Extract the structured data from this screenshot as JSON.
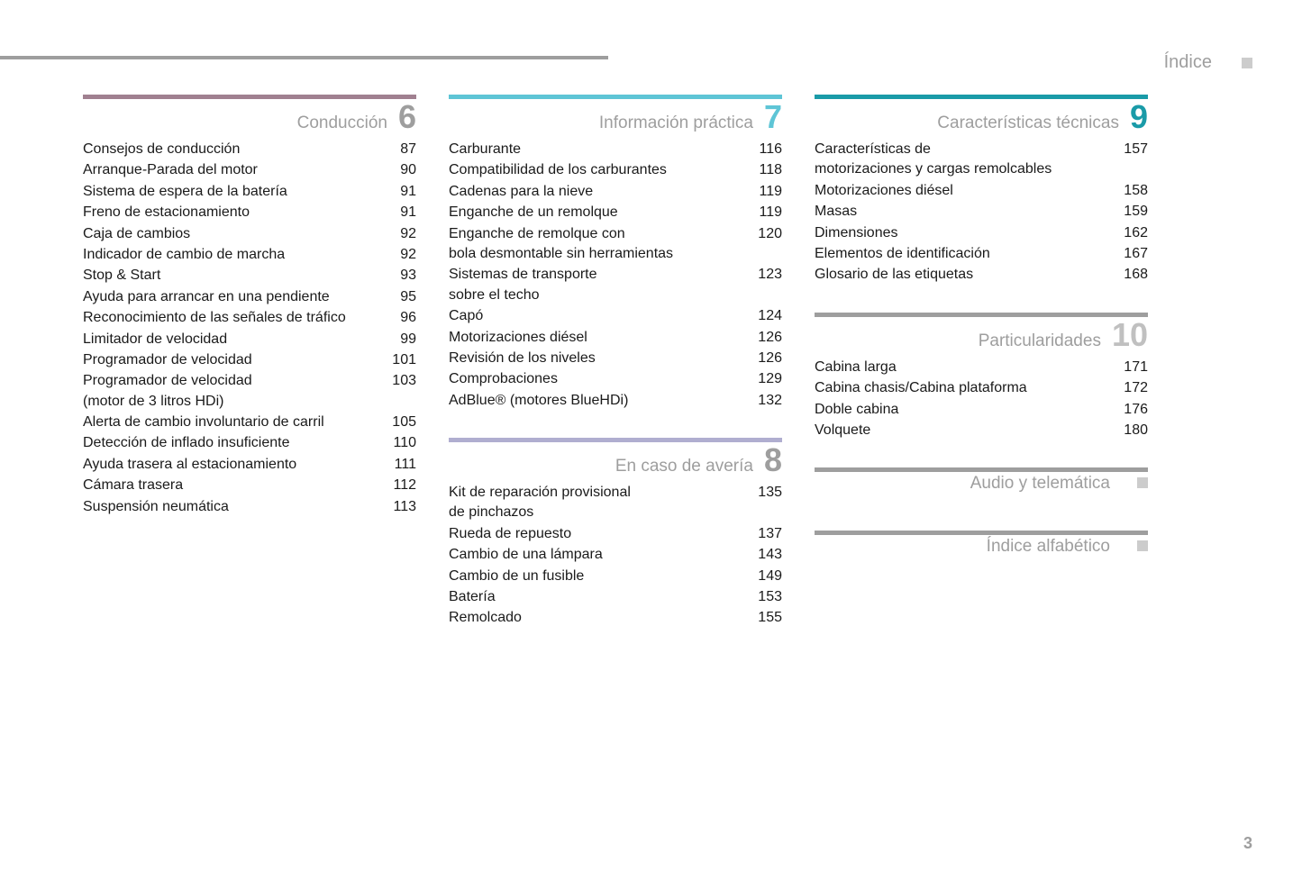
{
  "header": {
    "label": "Índice",
    "top_bar_color": "#9e9e9e"
  },
  "page_number": "3",
  "columns": [
    {
      "sections": [
        {
          "title": "Conducción",
          "number": "6",
          "bar_color": "#a08090",
          "number_color": "#9e9e9e",
          "items": [
            {
              "label": "Consejos de conducción",
              "page": "87"
            },
            {
              "label": "Arranque-Parada del motor",
              "page": "90"
            },
            {
              "label": "Sistema de espera de la batería",
              "page": "91"
            },
            {
              "label": "Freno de estacionamiento",
              "page": "91"
            },
            {
              "label": "Caja de cambios",
              "page": "92"
            },
            {
              "label": "Indicador de cambio de marcha",
              "page": "92"
            },
            {
              "label": "Stop & Start",
              "page": "93"
            },
            {
              "label": "Ayuda para arrancar en una pendiente",
              "page": "95"
            },
            {
              "label": "Reconocimiento de las señales de tráfico",
              "page": "96"
            },
            {
              "label": "Limitador de velocidad",
              "page": "99"
            },
            {
              "label": "Programador de velocidad",
              "page": "101"
            },
            {
              "label": "Programador de velocidad\n(motor de 3 litros HDi)",
              "page": "103"
            },
            {
              "label": "Alerta de cambio involuntario de carril",
              "page": "105"
            },
            {
              "label": "Detección de inflado insuficiente",
              "page": "110"
            },
            {
              "label": "Ayuda trasera al estacionamiento",
              "page": "111"
            },
            {
              "label": "Cámara trasera",
              "page": "112"
            },
            {
              "label": "Suspensión neumática",
              "page": "113"
            }
          ]
        }
      ]
    },
    {
      "sections": [
        {
          "title": "Información práctica",
          "number": "7",
          "bar_color": "#5ec5d6",
          "number_color": "#5ec5d6",
          "items": [
            {
              "label": "Carburante",
              "page": "116"
            },
            {
              "label": "Compatibilidad de los carburantes",
              "page": "118"
            },
            {
              "label": "Cadenas para la nieve",
              "page": "119"
            },
            {
              "label": "Enganche de un remolque",
              "page": "119"
            },
            {
              "label": "Enganche de remolque con\nbola desmontable sin herramientas",
              "page": "120"
            },
            {
              "label": "Sistemas de transporte\nsobre el techo",
              "page": "123"
            },
            {
              "label": "Capó",
              "page": "124"
            },
            {
              "label": "Motorizaciones diésel",
              "page": "126"
            },
            {
              "label": "Revisión de los niveles",
              "page": "126"
            },
            {
              "label": "Comprobaciones",
              "page": "129"
            },
            {
              "label": "AdBlue® (motores BlueHDi)",
              "page": "132"
            }
          ]
        },
        {
          "title": "En caso de avería",
          "number": "8",
          "bar_color": "#b0aed0",
          "number_color": "#9e9e9e",
          "items": [
            {
              "label": "Kit de reparación provisional\nde pinchazos",
              "page": "135"
            },
            {
              "label": "Rueda de repuesto",
              "page": "137"
            },
            {
              "label": "Cambio de una lámpara",
              "page": "143"
            },
            {
              "label": "Cambio de un fusible",
              "page": "149"
            },
            {
              "label": "Batería",
              "page": "153"
            },
            {
              "label": "Remolcado",
              "page": "155"
            }
          ]
        }
      ]
    },
    {
      "sections": [
        {
          "title": "Características técnicas",
          "number": "9",
          "bar_color": "#1a9ba8",
          "number_color": "#1a9ba8",
          "items": [
            {
              "label": "Características de\nmotorizaciones y cargas remolcables",
              "page": "157"
            },
            {
              "label": "Motorizaciones diésel",
              "page": "158"
            },
            {
              "label": "Masas",
              "page": "159"
            },
            {
              "label": "Dimensiones",
              "page": "162"
            },
            {
              "label": "Elementos de identificación",
              "page": "167"
            },
            {
              "label": "Glosario de las etiquetas",
              "page": "168"
            }
          ]
        },
        {
          "title": "Particularidades",
          "number": "10",
          "bar_color": "#9e9e9e",
          "number_color": "#c0c0c0",
          "items": [
            {
              "label": "Cabina larga",
              "page": "171"
            },
            {
              "label": "Cabina chasis/Cabina plataforma",
              "page": "172"
            },
            {
              "label": "Doble cabina",
              "page": "176"
            },
            {
              "label": "Volquete",
              "page": "180"
            }
          ]
        },
        {
          "title": "Audio y telemática",
          "number": "",
          "bar_color": "#9e9e9e",
          "number_color": "#9e9e9e",
          "show_square": true,
          "items": []
        },
        {
          "title": "Índice alfabético",
          "number": "",
          "bar_color": "#9e9e9e",
          "number_color": "#9e9e9e",
          "show_square": true,
          "items": []
        }
      ]
    }
  ]
}
